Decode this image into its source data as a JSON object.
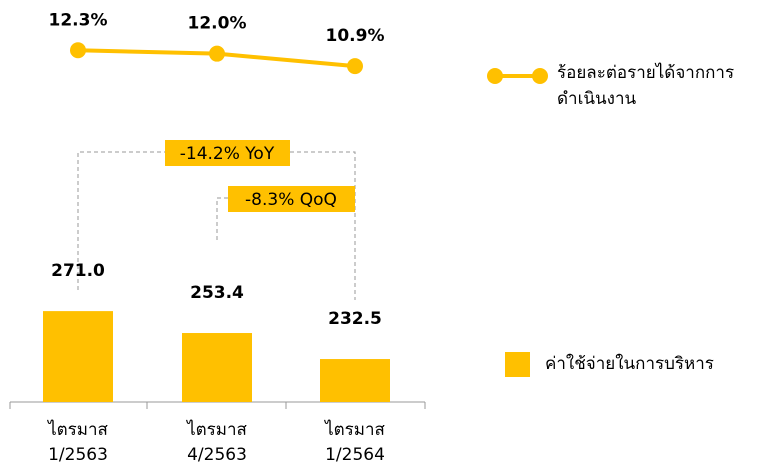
{
  "chart_data": {
    "type": "bar-line",
    "categories": [
      "ไตรมาส 1/2563",
      "ไตรมาส 4/2563",
      "ไตรมาส 1/2564"
    ],
    "series": [
      {
        "name": "ค่าใช้จ่ายในการบริหาร",
        "type": "bar",
        "color": "#ffc000",
        "values": [
          271.0,
          253.4,
          232.5
        ],
        "value_labels": [
          "271.0",
          "253.4",
          "232.5"
        ]
      },
      {
        "name": "ร้อยละต่อรายได้จากการดำเนินงาน",
        "type": "line",
        "axis": "y2",
        "color": "#ffc000",
        "values": [
          12.3,
          12.0,
          10.9
        ],
        "value_labels": [
          "12.3%",
          "12.0%",
          "10.9%"
        ]
      }
    ],
    "ylim": [
      198,
      300
    ],
    "y2lim": [
      8,
      14
    ],
    "annotations": [
      "-14.2% YoY",
      "-8.3% QoQ"
    ]
  }
}
